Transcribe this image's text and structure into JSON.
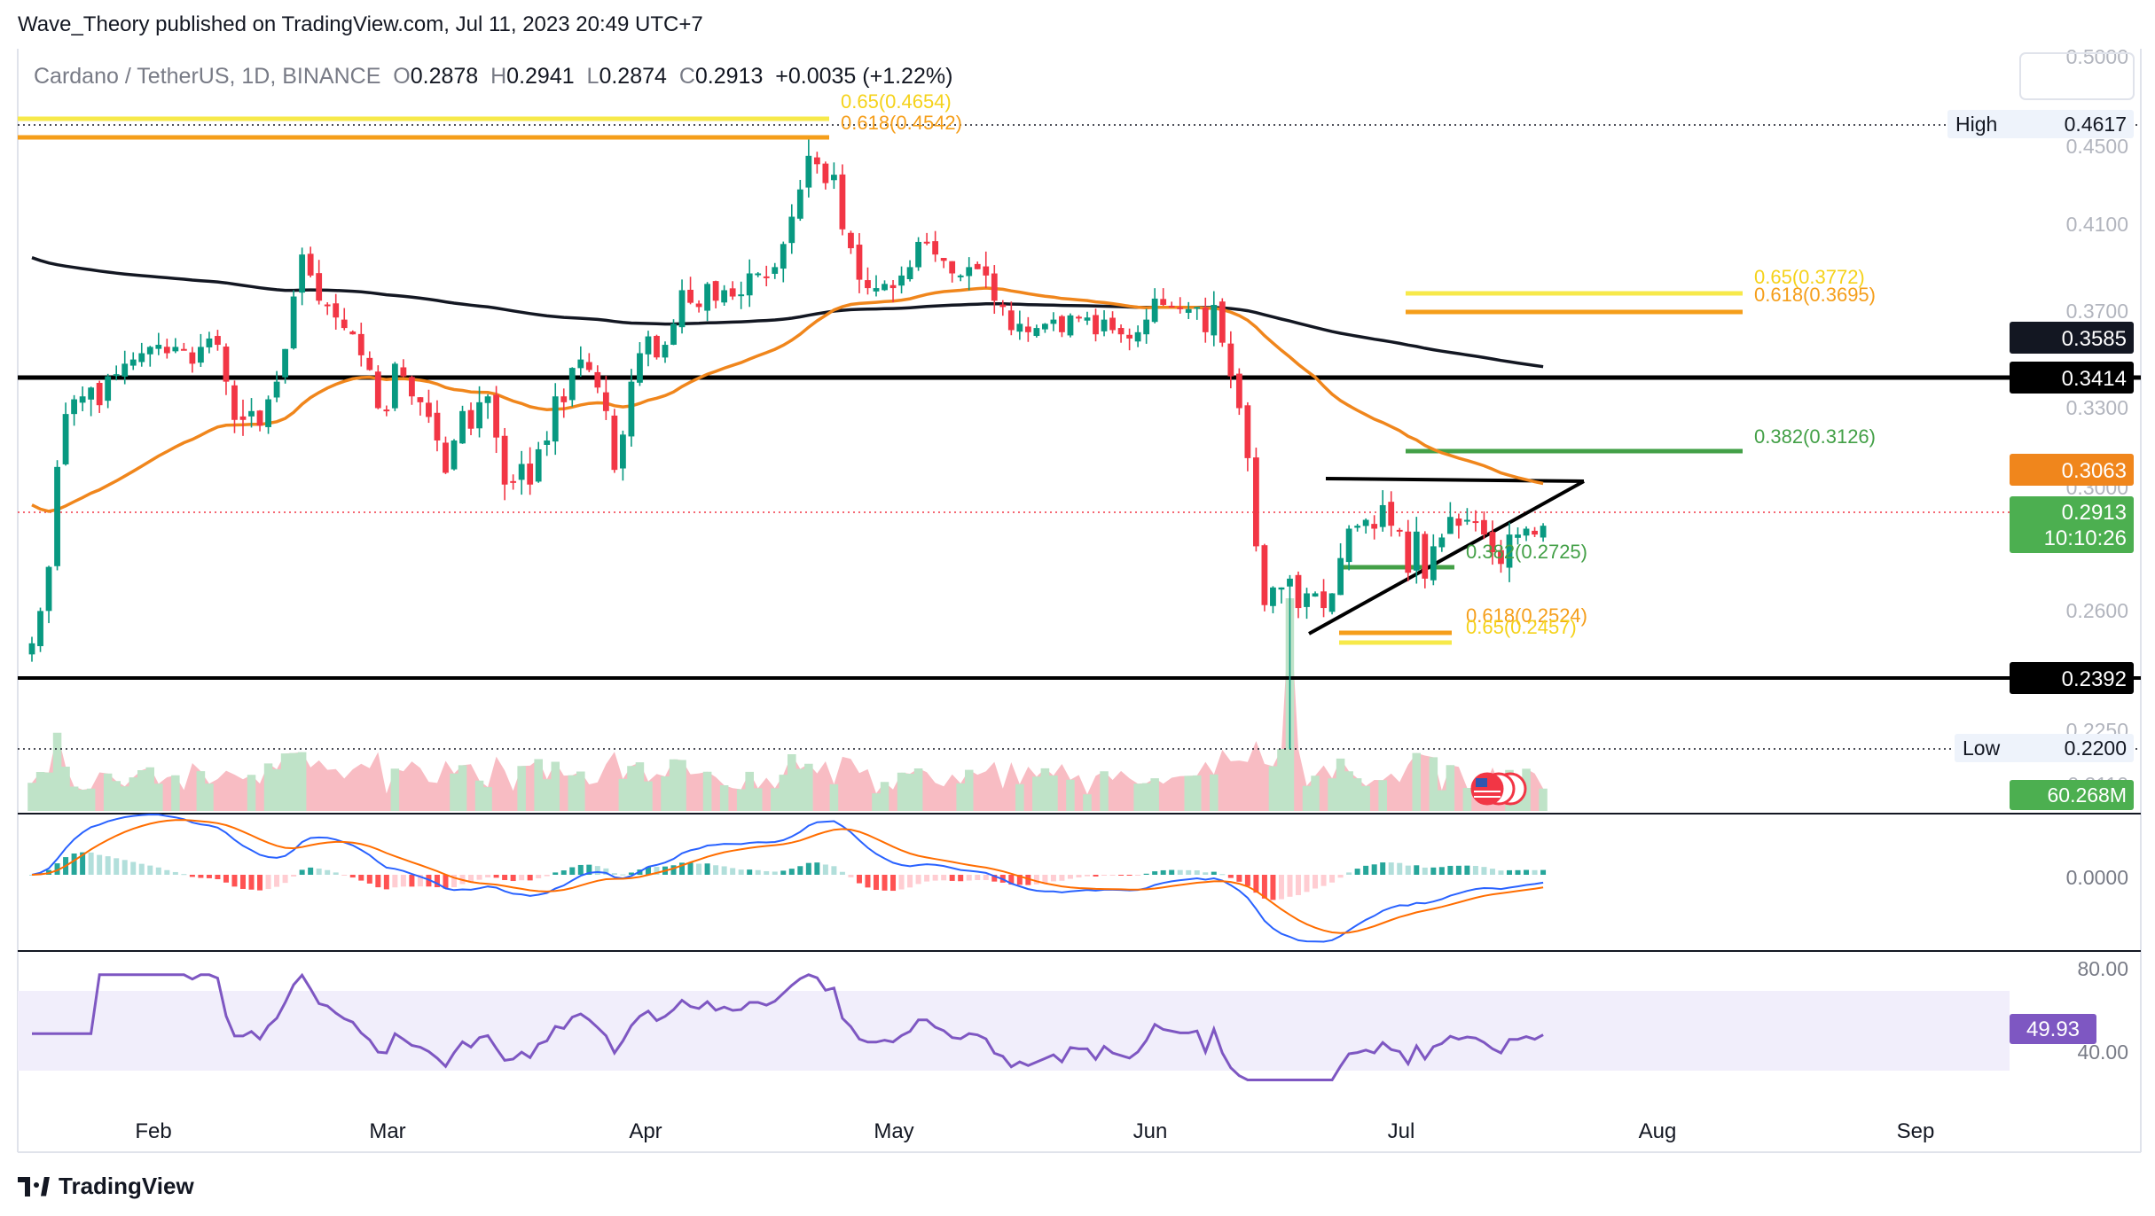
{
  "publisher_text": "Wave_Theory published on TradingView.com, Jul 11, 2023 20:49 UTC+7",
  "brand_text": "TradingView",
  "symbol": {
    "name": "Cardano / TetherUS, 1D, BINANCE",
    "o_label": "O",
    "o_value": "0.2878",
    "h_label": "H",
    "h_value": "0.2941",
    "l_label": "L",
    "l_value": "0.2874",
    "c_label": "C",
    "c_value": "0.2913",
    "change": "+0.0035 (+1.22%)"
  },
  "colors": {
    "up": "#089981",
    "down": "#f23645",
    "ema50": "#f0861c",
    "ema200": "#131722",
    "fib_yellow": "#f7e94a",
    "fib_orange": "#f59e1a",
    "fib_green": "#43a047",
    "rsi_line": "#7e57c2",
    "rsi_band": "#f1eefb",
    "macd_line": "#2962ff",
    "signal_line": "#ff6d00"
  },
  "chart_data": [
    {
      "type": "candlestick",
      "title": "Cardano / TetherUS, 1D, BINANCE",
      "y_axis_ticks": [
        "0.5000",
        "0.4500",
        "0.4100",
        "0.3700",
        "0.3300",
        "0.3000",
        "0.2600",
        "0.2250",
        "0.2110"
      ],
      "x_axis_ticks": [
        "Feb",
        "Mar",
        "Apr",
        "May",
        "Jun",
        "Jul",
        "Aug",
        "Sep"
      ],
      "price_labels": {
        "high_label": "High",
        "high_value": "0.4617",
        "low_label": "Low",
        "low_value": "0.2200",
        "ema200": "0.3585",
        "resistance": "0.3414",
        "ema50": "0.3063",
        "last": "0.2913",
        "countdown": "10:10:26",
        "support": "0.2392",
        "volume": "60.268M"
      },
      "fib_labels": {
        "top_065": "0.65(0.4654)",
        "top_0618": "0.618(0.4542)",
        "mid_065": "0.65(0.3772)",
        "mid_0618": "0.618(0.3695)",
        "mid_0382": "0.382(0.3126)",
        "low_0382": "0.382(0.2725)",
        "low_0618": "0.618(0.2524)",
        "low_065": "0.65(0.2457)"
      },
      "horizontal_levels": [
        0.4617,
        0.3414,
        0.2392,
        0.22
      ],
      "fib_levels": [
        0.4654,
        0.4542,
        0.3772,
        0.3695,
        0.3126,
        0.2725,
        0.2524,
        0.2457
      ],
      "daily_close": [
        0.251,
        0.262,
        0.277,
        0.311,
        0.329,
        0.334,
        0.335,
        0.338,
        0.332,
        0.342,
        0.343,
        0.348,
        0.35,
        0.353,
        0.356,
        0.357,
        0.353,
        0.356,
        0.355,
        0.348,
        0.356,
        0.36,
        0.357,
        0.34,
        0.327,
        0.327,
        0.33,
        0.325,
        0.334,
        0.34,
        0.355,
        0.38,
        0.4,
        0.39,
        0.378,
        0.376,
        0.37,
        0.365,
        0.362,
        0.352,
        0.345,
        0.331,
        0.33,
        0.348,
        0.342,
        0.335,
        0.333,
        0.328,
        0.32,
        0.309,
        0.32,
        0.33,
        0.324,
        0.333,
        0.335,
        0.321,
        0.305,
        0.306,
        0.312,
        0.305,
        0.317,
        0.32,
        0.335,
        0.333,
        0.346,
        0.35,
        0.345,
        0.338,
        0.33,
        0.31,
        0.322,
        0.34,
        0.353,
        0.361,
        0.351,
        0.357,
        0.367,
        0.383,
        0.377,
        0.375,
        0.386,
        0.378,
        0.383,
        0.38,
        0.381,
        0.391,
        0.391,
        0.389,
        0.394,
        0.405,
        0.418,
        0.431,
        0.447,
        0.443,
        0.434,
        0.438,
        0.412,
        0.403,
        0.388,
        0.384,
        0.384,
        0.386,
        0.384,
        0.39,
        0.394,
        0.406,
        0.406,
        0.4,
        0.397,
        0.391,
        0.39,
        0.394,
        0.393,
        0.39,
        0.378,
        0.375,
        0.364,
        0.367,
        0.363,
        0.365,
        0.367,
        0.369,
        0.363,
        0.371,
        0.37,
        0.37,
        0.362,
        0.369,
        0.364,
        0.362,
        0.36,
        0.363,
        0.369,
        0.379,
        0.376,
        0.375,
        0.374,
        0.374,
        0.375,
        0.363,
        0.376,
        0.358,
        0.342,
        0.331,
        0.314,
        0.284,
        0.264,
        0.27,
        0.27,
        0.273,
        0.263,
        0.268,
        0.268,
        0.263,
        0.268,
        0.28,
        0.29,
        0.291,
        0.293,
        0.29,
        0.298,
        0.291,
        0.289,
        0.275,
        0.289,
        0.273,
        0.284,
        0.287,
        0.294,
        0.291,
        0.293,
        0.292,
        0.288,
        0.282,
        0.278,
        0.288,
        0.288,
        0.29,
        0.288,
        0.291
      ],
      "volume_series": "relative daily volume with spike on Jun 10",
      "indicators": [
        "EMA 50",
        "EMA 200",
        "MACD",
        "RSI"
      ]
    },
    {
      "type": "line",
      "title": "",
      "y_axis_ticks": [
        "0.0000"
      ]
    },
    {
      "type": "line",
      "title": "",
      "y_axis_ticks": [
        "80.00",
        "40.00"
      ],
      "last_value": "49.93"
    }
  ]
}
